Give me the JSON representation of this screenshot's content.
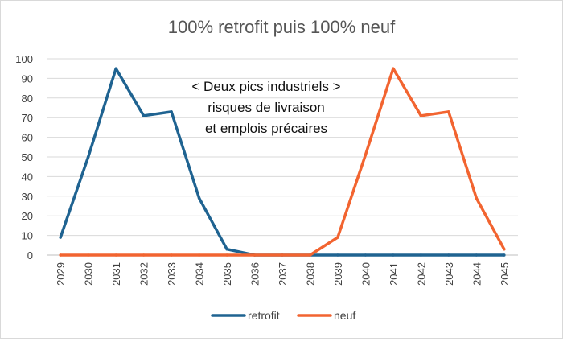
{
  "chart_data": {
    "type": "line",
    "title": "100% retrofit puis 100% neuf",
    "annotation": [
      "< Deux pics industriels >",
      "risques de livraison",
      "et emplois précaires"
    ],
    "categories": [
      "2029",
      "2030",
      "2031",
      "2032",
      "2033",
      "2034",
      "2035",
      "2036",
      "2037",
      "2038",
      "2039",
      "2040",
      "2041",
      "2042",
      "2043",
      "2044",
      "2045"
    ],
    "ylim": [
      0,
      100
    ],
    "yticks": [
      0,
      10,
      20,
      30,
      40,
      50,
      60,
      70,
      80,
      90,
      100
    ],
    "grid": true,
    "legend_position": "bottom",
    "series": [
      {
        "name": "retrofit",
        "color": "#1f6391",
        "values": [
          9,
          50,
          95,
          71,
          73,
          29,
          3,
          0,
          0,
          0,
          0,
          0,
          0,
          0,
          0,
          0,
          0
        ]
      },
      {
        "name": "neuf",
        "color": "#f26430",
        "values": [
          0,
          0,
          0,
          0,
          0,
          0,
          0,
          0,
          0,
          0,
          9,
          51,
          95,
          71,
          73,
          29,
          3
        ]
      }
    ]
  }
}
